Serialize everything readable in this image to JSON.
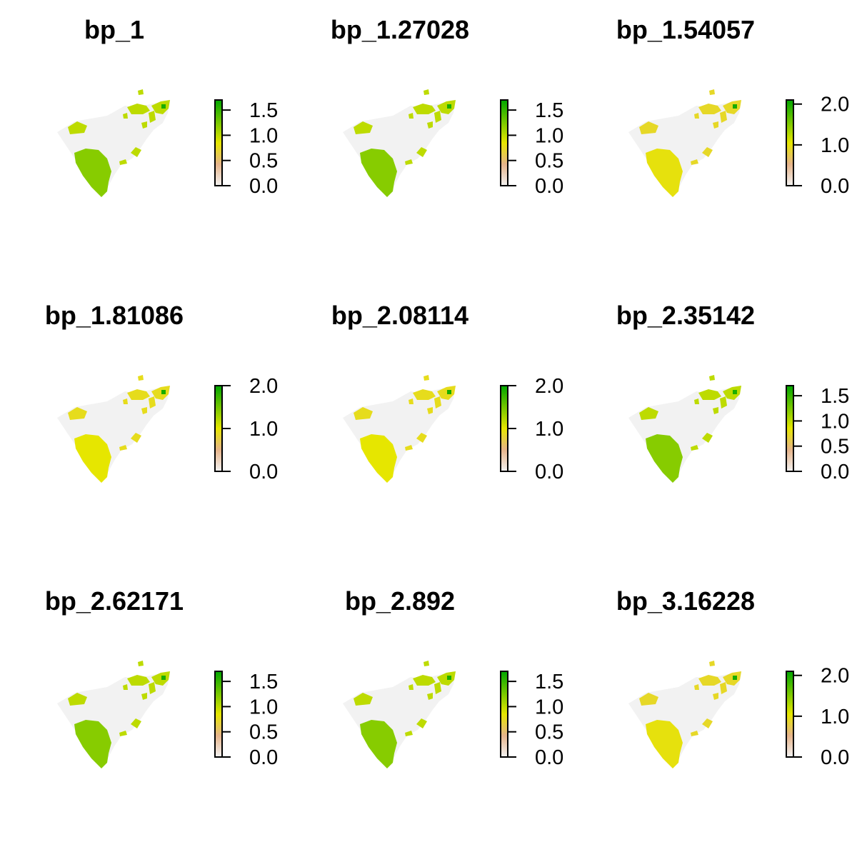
{
  "chart_data": [
    {
      "type": "heatmap",
      "title": "bp_1",
      "legend_ticks": [
        "0.0",
        "0.5",
        "1.0",
        "1.5"
      ],
      "legend_range": [
        0,
        1.7
      ],
      "fill_value": 1.2,
      "blob_value": 1.0,
      "hotspot_value": 1.6
    },
    {
      "type": "heatmap",
      "title": "bp_1.27028",
      "legend_ticks": [
        "0.0",
        "0.5",
        "1.0",
        "1.5"
      ],
      "legend_range": [
        0,
        1.7
      ],
      "fill_value": 1.2,
      "blob_value": 1.0,
      "hotspot_value": 1.6
    },
    {
      "type": "heatmap",
      "title": "bp_1.54057",
      "legend_ticks": [
        "0.0",
        "1.0",
        "2.0"
      ],
      "legend_range": [
        0,
        2.1
      ],
      "fill_value": 1.0,
      "blob_value": 0.9,
      "hotspot_value": 2.0
    },
    {
      "type": "heatmap",
      "title": "bp_1.81086",
      "legend_ticks": [
        "0.0",
        "1.0",
        "2.0"
      ],
      "legend_range": [
        0,
        2.0
      ],
      "fill_value": 1.0,
      "blob_value": 0.9,
      "hotspot_value": 1.9
    },
    {
      "type": "heatmap",
      "title": "bp_2.08114",
      "legend_ticks": [
        "0.0",
        "1.0",
        "2.0"
      ],
      "legend_range": [
        0,
        2.0
      ],
      "fill_value": 1.0,
      "blob_value": 0.9,
      "hotspot_value": 1.9
    },
    {
      "type": "heatmap",
      "title": "bp_2.35142",
      "legend_ticks": [
        "0.0",
        "0.5",
        "1.0",
        "1.5"
      ],
      "legend_range": [
        0,
        1.7
      ],
      "fill_value": 1.2,
      "blob_value": 1.0,
      "hotspot_value": 1.6
    },
    {
      "type": "heatmap",
      "title": "bp_2.62171",
      "legend_ticks": [
        "0.0",
        "0.5",
        "1.0",
        "1.5"
      ],
      "legend_range": [
        0,
        1.7
      ],
      "fill_value": 1.2,
      "blob_value": 1.0,
      "hotspot_value": 1.6
    },
    {
      "type": "heatmap",
      "title": "bp_2.892",
      "legend_ticks": [
        "0.0",
        "0.5",
        "1.0",
        "1.5"
      ],
      "legend_range": [
        0,
        1.7
      ],
      "fill_value": 1.2,
      "blob_value": 1.0,
      "hotspot_value": 1.6
    },
    {
      "type": "heatmap",
      "title": "bp_3.16228",
      "legend_ticks": [
        "0.0",
        "1.0",
        "2.0"
      ],
      "legend_range": [
        0,
        2.1
      ],
      "fill_value": 1.0,
      "blob_value": 0.9,
      "hotspot_value": 2.0
    }
  ],
  "colors": {
    "background_region": "#f2f2f2",
    "scale_low": "#f2f2f2",
    "scale_mid_low": "#e6b48a",
    "scale_mid": "#e6e600",
    "scale_high": "#00a600"
  }
}
